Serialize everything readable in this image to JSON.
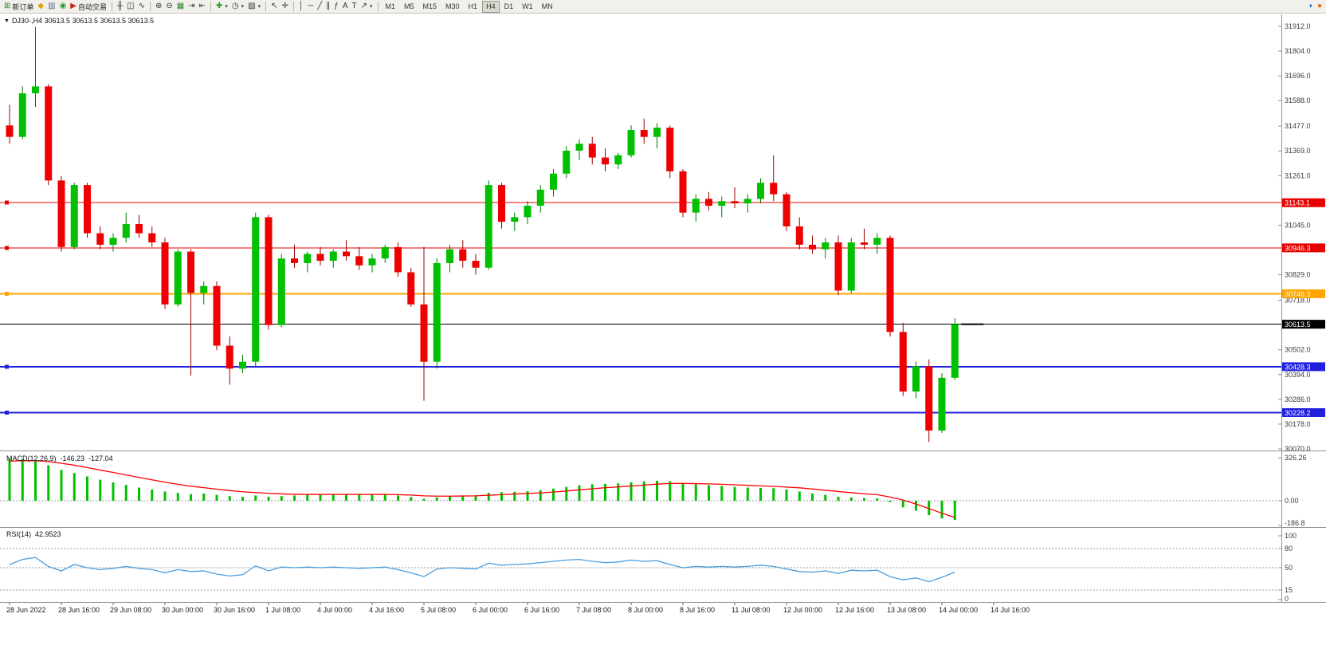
{
  "toolbar": {
    "items": [
      {
        "name": "new-order-button",
        "glyph": "⊞",
        "color": "#2a8a2a",
        "label": "新订单"
      },
      {
        "name": "metaeditor-button",
        "glyph": "◆",
        "color": "#d9a400"
      },
      {
        "name": "chart-window-button",
        "glyph": "▥",
        "color": "#566a8a"
      },
      {
        "name": "signals-button",
        "glyph": "◉",
        "color": "#2a9a2a"
      },
      {
        "name": "autotrading-button",
        "glyph": "▶",
        "color": "#cc2222",
        "label": "自动交易"
      },
      {
        "type": "sep"
      },
      {
        "name": "bar-chart-button",
        "glyph": "╫",
        "color": "#333333"
      },
      {
        "name": "candlestick-chart-button",
        "glyph": "◫",
        "color": "#333333"
      },
      {
        "name": "line-chart-button",
        "glyph": "∿",
        "color": "#333333"
      },
      {
        "type": "sep"
      },
      {
        "name": "zoom-in-button",
        "glyph": "⊕",
        "color": "#333333"
      },
      {
        "name": "zoom-out-button",
        "glyph": "⊖",
        "color": "#333333"
      },
      {
        "name": "tile-windows-button",
        "glyph": "▦",
        "color": "#2a8a2a"
      },
      {
        "name": "auto-scroll-button",
        "glyph": "⇥",
        "color": "#333333"
      },
      {
        "name": "chart-shift-button",
        "glyph": "⇤",
        "color": "#333333"
      },
      {
        "type": "sep"
      },
      {
        "name": "indicators-button",
        "glyph": "✚",
        "color": "#2a9a2a",
        "dropdown": true
      },
      {
        "name": "periods-button",
        "glyph": "◷",
        "color": "#333333",
        "dropdown": true
      },
      {
        "name": "templates-button",
        "glyph": "▨",
        "color": "#333333",
        "dropdown": true
      },
      {
        "type": "sep"
      },
      {
        "name": "cursor-button",
        "glyph": "↖",
        "color": "#333333"
      },
      {
        "name": "crosshair-button",
        "glyph": "✛",
        "color": "#333333"
      },
      {
        "type": "sep"
      },
      {
        "name": "vertical-line-button",
        "glyph": "│",
        "color": "#333333"
      },
      {
        "name": "horizontal-line-button",
        "glyph": "─",
        "color": "#333333"
      },
      {
        "name": "trendline-button",
        "glyph": "╱",
        "color": "#333333"
      },
      {
        "name": "channel-button",
        "glyph": "∥",
        "color": "#333333"
      },
      {
        "name": "fibonacci-button",
        "glyph": "ƒ",
        "color": "#333333"
      },
      {
        "name": "text-button",
        "glyph": "A",
        "color": "#333333"
      },
      {
        "name": "text-label-button",
        "glyph": "T",
        "color": "#333333"
      },
      {
        "name": "arrows-button",
        "glyph": "↗",
        "color": "#333333",
        "dropdown": true
      },
      {
        "type": "sep"
      },
      {
        "type": "timeframes"
      },
      {
        "type": "spacer"
      },
      {
        "name": "community-button",
        "glyph": "◗",
        "color": "#1a6fd4"
      },
      {
        "name": "notifications-button",
        "glyph": "●",
        "color": "#e8680a"
      }
    ],
    "timeframes": [
      "M1",
      "M5",
      "M15",
      "M30",
      "H1",
      "H4",
      "D1",
      "W1",
      "MN"
    ],
    "active_timeframe": "H4"
  },
  "chart_data": {
    "type": "candlestick",
    "symbol": "DJ30-",
    "timeframe": "H4",
    "title_triangle": "▼",
    "title_overlay": "DJ30-,H4  30613.5 30613.5 30613.5 30613.5",
    "colors": {
      "bull": "#00C000",
      "bear": "#EE0000",
      "bull_wick": "#007800",
      "bear_wick": "#990000",
      "macd_hist": "#00C000",
      "macd_signal": "#FF0000",
      "rsi_line": "#4A9EDE",
      "axis_text": "#3a3a3a",
      "time_text": "#1a1a1a",
      "badge_red": "#E80000",
      "badge_orange": "#FFA500",
      "badge_blue": "#2020DD",
      "badge_black": "#000000"
    },
    "price_axis": {
      "min": 30070,
      "max": 31912,
      "labels": [
        {
          "text": "31912.0",
          "value": 31912
        },
        {
          "text": "31804.0",
          "value": 31804
        },
        {
          "text": "31696.0",
          "value": 31696
        },
        {
          "text": "31588.0",
          "value": 31588
        },
        {
          "text": "31477.0",
          "value": 31477
        },
        {
          "text": "31369.0",
          "value": 31369
        },
        {
          "text": "31261.0",
          "value": 31261
        },
        {
          "text": "31045.0",
          "value": 31045
        },
        {
          "text": "30829.0",
          "value": 30829
        },
        {
          "text": "30718.0",
          "value": 30718
        },
        {
          "text": "30502.0",
          "value": 30502
        },
        {
          "text": "30394.0",
          "value": 30394
        },
        {
          "text": "30286.0",
          "value": 30286
        },
        {
          "text": "30178.0",
          "value": 30178
        },
        {
          "text": "30070.0",
          "value": 30070
        }
      ]
    },
    "level_lines": [
      {
        "label": "31143.1",
        "value": 31143.1,
        "color": "#E80000",
        "width": 1
      },
      {
        "label": "30946.3",
        "value": 30946.3,
        "color": "#E80000",
        "width": 1
      },
      {
        "label": "30746.3",
        "value": 30746.3,
        "color": "#FFA500",
        "width": 2
      },
      {
        "label": "30613.5",
        "value": 30613.5,
        "color": "#000000",
        "width": 1,
        "current": true
      },
      {
        "label": "30428.3",
        "value": 30428.3,
        "color": "#2020DD",
        "width": 2
      },
      {
        "label": "30228.2",
        "value": 30228.2,
        "color": "#2020DD",
        "width": 2
      }
    ],
    "time_axis": {
      "labels": [
        "28 Jun 2022",
        "28 Jun 16:00",
        "29 Jun 08:00",
        "30 Jun 00:00",
        "30 Jun 16:00",
        "1 Jul 08:00",
        "4 Jul 00:00",
        "4 Jul 16:00",
        "5 Jul 08:00",
        "6 Jul 00:00",
        "6 Jul 16:00",
        "7 Jul 08:00",
        "8 Jul 00:00",
        "8 Jul 16:00",
        "11 Jul 08:00",
        "12 Jul 00:00",
        "12 Jul 16:00",
        "13 Jul 08:00",
        "14 Jul 00:00",
        "14 Jul 16:00"
      ],
      "indices": [
        0,
        4,
        8,
        12,
        16,
        20,
        24,
        28,
        32,
        36,
        40,
        44,
        48,
        52,
        56,
        60,
        64,
        68,
        72,
        76
      ]
    },
    "candles": [
      [
        31480,
        31570,
        31400,
        31430
      ],
      [
        31430,
        31650,
        31420,
        31620
      ],
      [
        31620,
        31910,
        31560,
        31650
      ],
      [
        31650,
        31660,
        31220,
        31240
      ],
      [
        31240,
        31260,
        30930,
        30950
      ],
      [
        30950,
        31230,
        30940,
        31220
      ],
      [
        31220,
        31230,
        30990,
        31010
      ],
      [
        31010,
        31040,
        30940,
        30960
      ],
      [
        30960,
        31010,
        30930,
        30990
      ],
      [
        30990,
        31100,
        30970,
        31050
      ],
      [
        31050,
        31090,
        30990,
        31010
      ],
      [
        31010,
        31040,
        30950,
        30970
      ],
      [
        30970,
        30990,
        30680,
        30700
      ],
      [
        30700,
        30940,
        30690,
        30930
      ],
      [
        30930,
        30940,
        30390,
        30750
      ],
      [
        30750,
        30800,
        30700,
        30780
      ],
      [
        30780,
        30800,
        30500,
        30520
      ],
      [
        30520,
        30560,
        30350,
        30420
      ],
      [
        30420,
        30480,
        30400,
        30450
      ],
      [
        30450,
        31100,
        30430,
        31080
      ],
      [
        31080,
        31090,
        30590,
        30610
      ],
      [
        30610,
        30920,
        30600,
        30900
      ],
      [
        30900,
        30960,
        30860,
        30880
      ],
      [
        30880,
        30930,
        30840,
        30920
      ],
      [
        30920,
        30950,
        30870,
        30890
      ],
      [
        30890,
        30940,
        30860,
        30930
      ],
      [
        30930,
        30980,
        30890,
        30910
      ],
      [
        30910,
        30950,
        30850,
        30870
      ],
      [
        30870,
        30920,
        30840,
        30900
      ],
      [
        30900,
        30960,
        30880,
        30950
      ],
      [
        30950,
        30970,
        30820,
        30840
      ],
      [
        30840,
        30860,
        30690,
        30700
      ],
      [
        30700,
        30950,
        30280,
        30450
      ],
      [
        30450,
        30900,
        30420,
        30880
      ],
      [
        30880,
        30960,
        30840,
        30940
      ],
      [
        30940,
        30980,
        30860,
        30890
      ],
      [
        30890,
        30920,
        30830,
        30860
      ],
      [
        30860,
        31240,
        30850,
        31220
      ],
      [
        31220,
        31230,
        31030,
        31060
      ],
      [
        31060,
        31100,
        31020,
        31080
      ],
      [
        31080,
        31150,
        31050,
        31130
      ],
      [
        31130,
        31220,
        31100,
        31200
      ],
      [
        31200,
        31290,
        31170,
        31270
      ],
      [
        31270,
        31390,
        31250,
        31370
      ],
      [
        31370,
        31420,
        31330,
        31400
      ],
      [
        31400,
        31430,
        31310,
        31340
      ],
      [
        31340,
        31380,
        31280,
        31310
      ],
      [
        31310,
        31360,
        31290,
        31350
      ],
      [
        31350,
        31480,
        31340,
        31460
      ],
      [
        31460,
        31510,
        31400,
        31430
      ],
      [
        31430,
        31490,
        31380,
        31470
      ],
      [
        31470,
        31480,
        31250,
        31280
      ],
      [
        31280,
        31290,
        31080,
        31100
      ],
      [
        31100,
        31180,
        31060,
        31160
      ],
      [
        31160,
        31190,
        31110,
        31130
      ],
      [
        31130,
        31170,
        31080,
        31150
      ],
      [
        31150,
        31210,
        31120,
        31140
      ],
      [
        31140,
        31180,
        31100,
        31160
      ],
      [
        31160,
        31250,
        31140,
        31230
      ],
      [
        31230,
        31350,
        31150,
        31180
      ],
      [
        31180,
        31190,
        31020,
        31040
      ],
      [
        31040,
        31080,
        30940,
        30960
      ],
      [
        30960,
        31000,
        30920,
        30940
      ],
      [
        30940,
        30990,
        30900,
        30970
      ],
      [
        30970,
        31000,
        30740,
        30760
      ],
      [
        30760,
        30990,
        30750,
        30970
      ],
      [
        30970,
        31030,
        30940,
        30960
      ],
      [
        30960,
        31010,
        30920,
        30990
      ],
      [
        30990,
        31000,
        30560,
        30580
      ],
      [
        30580,
        30620,
        30300,
        30320
      ],
      [
        30320,
        30450,
        30290,
        30430
      ],
      [
        30430,
        30460,
        30100,
        30150
      ],
      [
        30150,
        30400,
        30140,
        30380
      ],
      [
        30380,
        30640,
        30370,
        30613.5
      ]
    ],
    "macd": {
      "label": "MACD(12,26,9)",
      "value_main": "-146.23",
      "value_signal": "-127.04",
      "axis_labels": [
        {
          "text": "326.26",
          "value": 326.26
        },
        {
          "text": "0.00",
          "value": 0
        },
        {
          "text": "-186.8",
          "value": -186.8
        }
      ],
      "histogram": [
        320,
        315,
        300,
        270,
        235,
        210,
        185,
        160,
        140,
        120,
        100,
        85,
        70,
        60,
        50,
        55,
        45,
        35,
        30,
        40,
        30,
        35,
        40,
        45,
        45,
        48,
        50,
        48,
        45,
        48,
        40,
        28,
        15,
        25,
        35,
        40,
        42,
        60,
        65,
        68,
        72,
        80,
        92,
        105,
        118,
        125,
        128,
        132,
        140,
        148,
        152,
        148,
        135,
        125,
        118,
        112,
        105,
        100,
        98,
        95,
        85,
        70,
        55,
        45,
        30,
        25,
        20,
        18,
        -10,
        -50,
        -75,
        -110,
        -135,
        -146.23
      ],
      "signal": [
        300,
        305,
        305,
        298,
        285,
        270,
        252,
        233,
        215,
        196,
        177,
        159,
        141,
        125,
        110,
        99,
        88,
        77,
        68,
        62,
        56,
        52,
        49,
        48,
        48,
        48,
        48,
        48,
        48,
        48,
        46,
        43,
        37,
        35,
        35,
        36,
        37,
        42,
        46,
        51,
        55,
        60,
        66,
        74,
        83,
        91,
        99,
        105,
        112,
        119,
        126,
        131,
        132,
        130,
        128,
        125,
        121,
        117,
        113,
        109,
        104,
        98,
        89,
        80,
        70,
        61,
        53,
        46,
        28,
        5,
        -25,
        -60,
        -95,
        -127.04
      ]
    },
    "rsi": {
      "label": "RSI(14)",
      "value": "42.9523",
      "axis_labels": [
        {
          "text": "100",
          "value": 100
        },
        {
          "text": "80",
          "value": 80
        },
        {
          "text": "50",
          "value": 50
        },
        {
          "text": "15",
          "value": 15
        },
        {
          "text": "0",
          "value": 0
        }
      ],
      "levels": [
        80,
        50,
        15
      ],
      "values": [
        55,
        63,
        66,
        52,
        45,
        55,
        50,
        47,
        49,
        52,
        49,
        47,
        42,
        47,
        44,
        45,
        40,
        37,
        39,
        53,
        45,
        51,
        50,
        51,
        50,
        51,
        50,
        49,
        50,
        51,
        47,
        42,
        36,
        48,
        50,
        49,
        48,
        57,
        54,
        55,
        56,
        58,
        60,
        62,
        63,
        60,
        58,
        59,
        62,
        60,
        61,
        55,
        50,
        52,
        51,
        52,
        51,
        52,
        54,
        52,
        48,
        44,
        43,
        45,
        41,
        46,
        45,
        46,
        36,
        31,
        34,
        28,
        35,
        42.95
      ]
    }
  }
}
